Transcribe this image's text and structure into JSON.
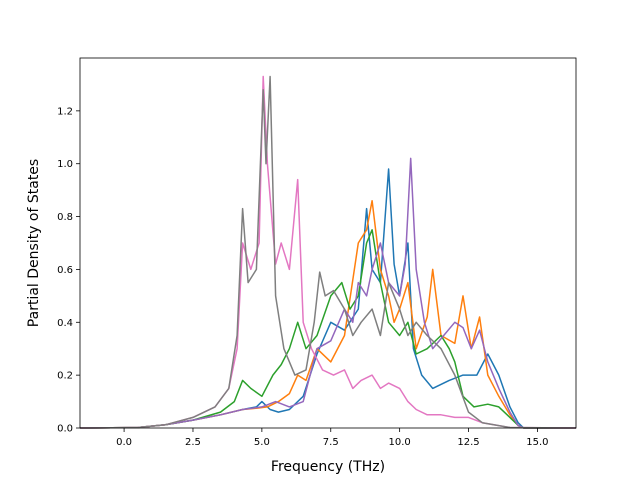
{
  "chart_data": {
    "type": "line",
    "xlabel": "Frequency (THz)",
    "ylabel": "Partial Density of States",
    "xlim": [
      -1.6,
      16.4
    ],
    "ylim": [
      0.0,
      1.4
    ],
    "xticks": [
      0.0,
      2.5,
      5.0,
      7.5,
      10.0,
      12.5,
      15.0
    ],
    "xtick_labels": [
      "0.0",
      "2.5",
      "5.0",
      "7.5",
      "10.0",
      "12.5",
      "15.0"
    ],
    "yticks": [
      0.0,
      0.2,
      0.4,
      0.6,
      0.8,
      1.0,
      1.2
    ],
    "ytick_labels": [
      "0.0",
      "0.2",
      "0.4",
      "0.6",
      "0.8",
      "1.0",
      "1.2"
    ],
    "grid": false,
    "legend": "none",
    "series": [
      {
        "color": "#1f77b4",
        "points": [
          [
            -1.6,
            0
          ],
          [
            0.5,
            0.002
          ],
          [
            1.5,
            0.012
          ],
          [
            2.5,
            0.03
          ],
          [
            3.5,
            0.05
          ],
          [
            4.3,
            0.07
          ],
          [
            4.8,
            0.08
          ],
          [
            5.0,
            0.1
          ],
          [
            5.3,
            0.07
          ],
          [
            5.6,
            0.06
          ],
          [
            6.0,
            0.07
          ],
          [
            6.5,
            0.12
          ],
          [
            7.0,
            0.28
          ],
          [
            7.5,
            0.4
          ],
          [
            8.0,
            0.37
          ],
          [
            8.5,
            0.45
          ],
          [
            8.8,
            0.83
          ],
          [
            9.0,
            0.6
          ],
          [
            9.3,
            0.55
          ],
          [
            9.6,
            0.98
          ],
          [
            9.8,
            0.62
          ],
          [
            10.0,
            0.5
          ],
          [
            10.3,
            0.7
          ],
          [
            10.5,
            0.3
          ],
          [
            10.8,
            0.2
          ],
          [
            11.2,
            0.15
          ],
          [
            11.8,
            0.18
          ],
          [
            12.3,
            0.2
          ],
          [
            12.8,
            0.2
          ],
          [
            13.2,
            0.28
          ],
          [
            13.6,
            0.2
          ],
          [
            14.0,
            0.08
          ],
          [
            14.3,
            0.02
          ],
          [
            14.5,
            0
          ],
          [
            16.4,
            0
          ]
        ]
      },
      {
        "color": "#ff7f0e",
        "points": [
          [
            -1.6,
            0
          ],
          [
            0.5,
            0.002
          ],
          [
            1.5,
            0.012
          ],
          [
            2.5,
            0.03
          ],
          [
            3.5,
            0.05
          ],
          [
            4.3,
            0.07
          ],
          [
            4.8,
            0.075
          ],
          [
            5.2,
            0.08
          ],
          [
            5.6,
            0.1
          ],
          [
            6.0,
            0.13
          ],
          [
            6.3,
            0.2
          ],
          [
            6.6,
            0.18
          ],
          [
            7.0,
            0.3
          ],
          [
            7.5,
            0.25
          ],
          [
            8.0,
            0.35
          ],
          [
            8.5,
            0.7
          ],
          [
            8.8,
            0.75
          ],
          [
            9.0,
            0.86
          ],
          [
            9.3,
            0.6
          ],
          [
            9.6,
            0.5
          ],
          [
            9.8,
            0.4
          ],
          [
            10.0,
            0.45
          ],
          [
            10.3,
            0.55
          ],
          [
            10.6,
            0.3
          ],
          [
            11.0,
            0.42
          ],
          [
            11.2,
            0.6
          ],
          [
            11.5,
            0.35
          ],
          [
            12.0,
            0.32
          ],
          [
            12.3,
            0.5
          ],
          [
            12.6,
            0.3
          ],
          [
            12.9,
            0.42
          ],
          [
            13.2,
            0.2
          ],
          [
            13.6,
            0.12
          ],
          [
            14.0,
            0.05
          ],
          [
            14.3,
            0.01
          ],
          [
            14.5,
            0
          ],
          [
            16.4,
            0
          ]
        ]
      },
      {
        "color": "#2ca02c",
        "points": [
          [
            -1.6,
            0
          ],
          [
            0.5,
            0.002
          ],
          [
            1.5,
            0.012
          ],
          [
            2.5,
            0.03
          ],
          [
            3.5,
            0.06
          ],
          [
            4.0,
            0.1
          ],
          [
            4.3,
            0.18
          ],
          [
            4.6,
            0.15
          ],
          [
            5.0,
            0.12
          ],
          [
            5.4,
            0.2
          ],
          [
            5.7,
            0.24
          ],
          [
            6.0,
            0.3
          ],
          [
            6.3,
            0.4
          ],
          [
            6.6,
            0.3
          ],
          [
            7.0,
            0.35
          ],
          [
            7.5,
            0.5
          ],
          [
            7.9,
            0.55
          ],
          [
            8.2,
            0.45
          ],
          [
            8.5,
            0.5
          ],
          [
            8.8,
            0.7
          ],
          [
            9.0,
            0.75
          ],
          [
            9.3,
            0.55
          ],
          [
            9.6,
            0.4
          ],
          [
            10.0,
            0.35
          ],
          [
            10.3,
            0.4
          ],
          [
            10.6,
            0.28
          ],
          [
            11.0,
            0.3
          ],
          [
            11.5,
            0.35
          ],
          [
            11.8,
            0.3
          ],
          [
            12.0,
            0.25
          ],
          [
            12.3,
            0.12
          ],
          [
            12.7,
            0.08
          ],
          [
            13.2,
            0.09
          ],
          [
            13.6,
            0.08
          ],
          [
            14.0,
            0.04
          ],
          [
            14.3,
            0.01
          ],
          [
            14.5,
            0
          ],
          [
            16.4,
            0
          ]
        ]
      },
      {
        "color": "#9467bd",
        "points": [
          [
            -1.6,
            0
          ],
          [
            0.5,
            0.002
          ],
          [
            1.5,
            0.012
          ],
          [
            2.5,
            0.03
          ],
          [
            3.5,
            0.05
          ],
          [
            4.3,
            0.07
          ],
          [
            5.0,
            0.08
          ],
          [
            5.5,
            0.1
          ],
          [
            6.0,
            0.08
          ],
          [
            6.5,
            0.1
          ],
          [
            7.0,
            0.3
          ],
          [
            7.5,
            0.33
          ],
          [
            8.0,
            0.45
          ],
          [
            8.3,
            0.4
          ],
          [
            8.5,
            0.55
          ],
          [
            8.8,
            0.5
          ],
          [
            9.0,
            0.6
          ],
          [
            9.3,
            0.7
          ],
          [
            9.6,
            0.55
          ],
          [
            10.0,
            0.5
          ],
          [
            10.2,
            0.62
          ],
          [
            10.4,
            1.02
          ],
          [
            10.6,
            0.6
          ],
          [
            10.9,
            0.4
          ],
          [
            11.2,
            0.3
          ],
          [
            11.6,
            0.35
          ],
          [
            12.0,
            0.4
          ],
          [
            12.3,
            0.38
          ],
          [
            12.6,
            0.3
          ],
          [
            12.9,
            0.37
          ],
          [
            13.2,
            0.25
          ],
          [
            13.6,
            0.15
          ],
          [
            14.0,
            0.06
          ],
          [
            14.3,
            0.01
          ],
          [
            14.5,
            0
          ],
          [
            16.4,
            0
          ]
        ]
      },
      {
        "color": "#e377c2",
        "points": [
          [
            -1.6,
            0
          ],
          [
            0.5,
            0.002
          ],
          [
            1.5,
            0.012
          ],
          [
            2.5,
            0.04
          ],
          [
            3.3,
            0.08
          ],
          [
            3.8,
            0.15
          ],
          [
            4.1,
            0.3
          ],
          [
            4.3,
            0.7
          ],
          [
            4.6,
            0.6
          ],
          [
            4.9,
            0.7
          ],
          [
            5.05,
            1.33
          ],
          [
            5.2,
            1.0
          ],
          [
            5.5,
            0.62
          ],
          [
            5.7,
            0.7
          ],
          [
            6.0,
            0.6
          ],
          [
            6.3,
            0.94
          ],
          [
            6.5,
            0.4
          ],
          [
            6.8,
            0.3
          ],
          [
            7.2,
            0.22
          ],
          [
            7.6,
            0.2
          ],
          [
            8.0,
            0.22
          ],
          [
            8.3,
            0.15
          ],
          [
            8.6,
            0.18
          ],
          [
            9.0,
            0.2
          ],
          [
            9.3,
            0.15
          ],
          [
            9.6,
            0.17
          ],
          [
            10.0,
            0.15
          ],
          [
            10.3,
            0.1
          ],
          [
            10.6,
            0.07
          ],
          [
            11.0,
            0.05
          ],
          [
            11.5,
            0.05
          ],
          [
            12.0,
            0.04
          ],
          [
            12.5,
            0.04
          ],
          [
            13.0,
            0.02
          ],
          [
            14.0,
            0.002
          ],
          [
            16.4,
            0
          ]
        ]
      },
      {
        "color": "#7f7f7f",
        "points": [
          [
            -1.6,
            0
          ],
          [
            0.5,
            0.002
          ],
          [
            1.5,
            0.012
          ],
          [
            2.5,
            0.04
          ],
          [
            3.3,
            0.08
          ],
          [
            3.8,
            0.15
          ],
          [
            4.1,
            0.35
          ],
          [
            4.3,
            0.83
          ],
          [
            4.5,
            0.55
          ],
          [
            4.8,
            0.6
          ],
          [
            5.05,
            1.28
          ],
          [
            5.15,
            1.0
          ],
          [
            5.3,
            1.33
          ],
          [
            5.5,
            0.5
          ],
          [
            5.8,
            0.3
          ],
          [
            6.2,
            0.2
          ],
          [
            6.6,
            0.22
          ],
          [
            6.9,
            0.4
          ],
          [
            7.1,
            0.59
          ],
          [
            7.3,
            0.5
          ],
          [
            7.6,
            0.52
          ],
          [
            8.0,
            0.45
          ],
          [
            8.3,
            0.35
          ],
          [
            8.6,
            0.4
          ],
          [
            9.0,
            0.45
          ],
          [
            9.3,
            0.35
          ],
          [
            9.6,
            0.55
          ],
          [
            10.0,
            0.45
          ],
          [
            10.3,
            0.35
          ],
          [
            10.6,
            0.4
          ],
          [
            11.0,
            0.35
          ],
          [
            11.5,
            0.3
          ],
          [
            12.0,
            0.2
          ],
          [
            12.5,
            0.06
          ],
          [
            13.0,
            0.02
          ],
          [
            14.0,
            0.002
          ],
          [
            16.4,
            0
          ]
        ]
      }
    ]
  }
}
